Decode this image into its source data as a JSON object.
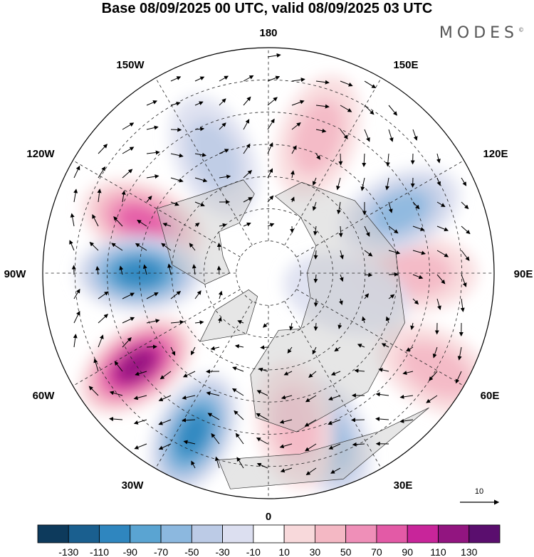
{
  "title": "Base 08/09/2025 00 UTC, valid 08/09/2025 03 UTC",
  "brand": "MODES",
  "brand_mark": "©",
  "longitude_labels": {
    "top": "180",
    "top_left": "150W",
    "top_right": "150E",
    "upper_left": "120W",
    "upper_right": "120E",
    "left": "90W",
    "right": "90E",
    "lower_left": "60W",
    "lower_right": "60E",
    "bottom_left": "30W",
    "bottom_right": "30E",
    "bottom": "0"
  },
  "vector_reference": {
    "label": "10"
  },
  "colorbar": {
    "colors": [
      "#0d3a5c",
      "#1a5f8f",
      "#2f86bf",
      "#5aa4d2",
      "#8cb8df",
      "#bccbe6",
      "#dcdff0",
      "#ffffff",
      "#f8d9db",
      "#f4b8c4",
      "#ef8fb8",
      "#e35aa6",
      "#c8259a",
      "#921580",
      "#5a0e6e"
    ],
    "tick_labels": [
      "-130",
      "-110",
      "-90",
      "-70",
      "-50",
      "-30",
      "-10",
      "10",
      "30",
      "50",
      "70",
      "90",
      "110",
      "130"
    ]
  },
  "anomaly_centers": [
    {
      "lon": -112,
      "lat": 48,
      "value": 90
    },
    {
      "lon": -90,
      "lat": 50,
      "value": -110
    },
    {
      "lon": -55,
      "lat": 40,
      "value": 130
    },
    {
      "lon": -25,
      "lat": 35,
      "value": -110
    },
    {
      "lon": 20,
      "lat": 35,
      "value": -70
    },
    {
      "lon": 10,
      "lat": 42,
      "value": 50
    },
    {
      "lon": 60,
      "lat": 30,
      "value": 50
    },
    {
      "lon": 90,
      "lat": 45,
      "value": 50
    },
    {
      "lon": 115,
      "lat": 45,
      "value": -70
    },
    {
      "lon": 160,
      "lat": 45,
      "value": 50
    },
    {
      "lon": -155,
      "lat": 50,
      "value": -50
    },
    {
      "lon": 75,
      "lat": 65,
      "value": -30
    }
  ]
}
